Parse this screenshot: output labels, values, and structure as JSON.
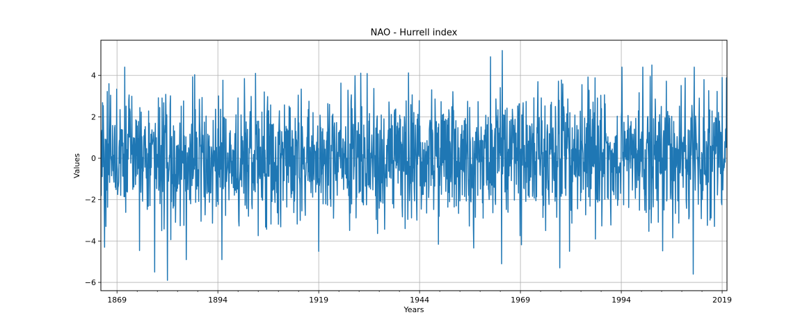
{
  "chart_data": {
    "type": "line",
    "title": "NAO - Hurrell index",
    "xlabel": "Years",
    "ylabel": "Values",
    "xlim": [
      1865.0,
      2020.2
    ],
    "ylim": [
      -6.4,
      5.7
    ],
    "grid": true,
    "x_major_ticks": [
      1869,
      1894,
      1919,
      1944,
      1969,
      1994,
      2019
    ],
    "x_minor_step_years": 5,
    "y_ticks": [
      4,
      2,
      0,
      -2,
      -4,
      -6
    ],
    "y_tick_labels": [
      "4",
      "2",
      "0",
      "−2",
      "−4",
      "−6"
    ],
    "series": [
      {
        "color": "#1f77b4",
        "x_start": 1865.0,
        "x_end": 2020.2,
        "x_step": "monthly",
        "approx_mean": 0.0,
        "approx_range": [
          -5.9,
          5.2
        ],
        "notable_extremes": [
          {
            "x": 1865.9,
            "y": -4.3
          },
          {
            "x": 1867.0,
            "y": 3.6
          },
          {
            "x": 1878.3,
            "y": -5.5
          },
          {
            "x": 1881.5,
            "y": -5.9
          },
          {
            "x": 1886.2,
            "y": -4.9
          },
          {
            "x": 1895.0,
            "y": -4.9
          },
          {
            "x": 1903.3,
            "y": 4.1
          },
          {
            "x": 1919.0,
            "y": -4.5
          },
          {
            "x": 1961.6,
            "y": 4.9
          },
          {
            "x": 1964.3,
            "y": -5.1
          },
          {
            "x": 1964.5,
            "y": 5.2
          },
          {
            "x": 1994.2,
            "y": 4.4
          },
          {
            "x": 2001.6,
            "y": 4.5
          },
          {
            "x": 2011.8,
            "y": -5.6
          },
          {
            "x": 2019.0,
            "y": 3.9
          }
        ]
      }
    ]
  }
}
